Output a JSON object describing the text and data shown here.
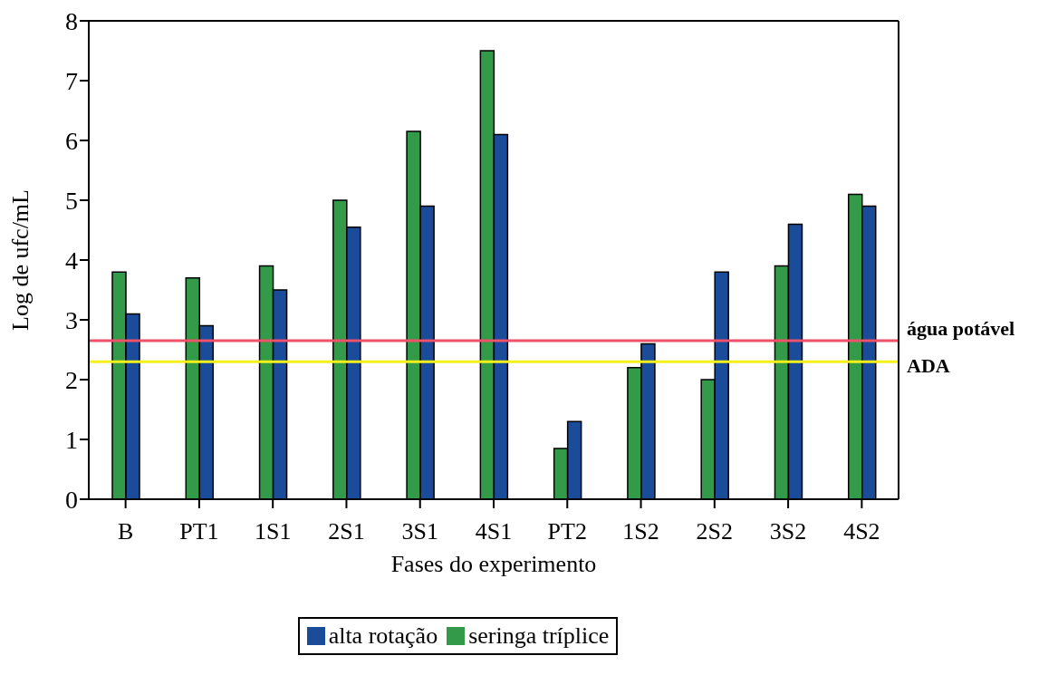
{
  "chart_data": {
    "type": "bar",
    "xlabel": "Fases do experimento",
    "ylabel": "Log de ufc/mL",
    "categories": [
      "B",
      "PT1",
      "1S1",
      "2S1",
      "3S1",
      "4S1",
      "PT2",
      "1S2",
      "2S2",
      "3S2",
      "4S2"
    ],
    "series": [
      {
        "name": "seringa tríplice",
        "color": "#339a4a",
        "values": [
          3.8,
          3.7,
          3.9,
          5.0,
          6.15,
          7.5,
          0.85,
          2.2,
          2.0,
          3.9,
          5.1
        ]
      },
      {
        "name": "alta rotação",
        "color": "#1a4c9a",
        "values": [
          3.1,
          2.9,
          3.5,
          4.55,
          4.9,
          6.1,
          1.3,
          2.6,
          3.8,
          4.6,
          4.9
        ]
      }
    ],
    "ylim": [
      0,
      8
    ],
    "yticks": [
      0,
      1,
      2,
      3,
      4,
      5,
      6,
      7,
      8
    ],
    "grid": false,
    "legend": "bottom",
    "ref_lines": [
      {
        "axis": "y",
        "value": 2.65,
        "label": "água potável",
        "color": "#f0506a"
      },
      {
        "axis": "y",
        "value": 2.3,
        "label": "ADA",
        "color": "#f5f01a"
      }
    ]
  }
}
